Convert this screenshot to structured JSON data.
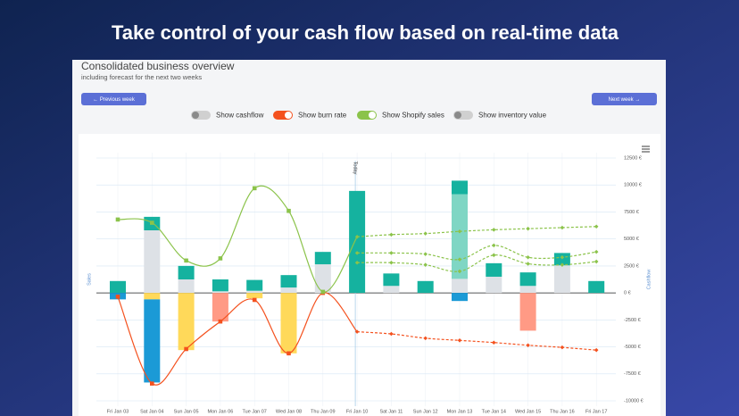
{
  "header": {
    "title": "Take control of your cash flow based on real-time data"
  },
  "panel": {
    "title": "Consolidated business overview",
    "subtitle": "including forecast for the next two weeks",
    "buttons": [
      "← Previous week",
      "Next week →"
    ],
    "toggles": [
      {
        "label": "Show cashflow",
        "on": false,
        "color": "#9e9e9e"
      },
      {
        "label": "Show burn rate",
        "on": true,
        "color": "#f4511e"
      },
      {
        "label": "Show Shopify sales",
        "on": true,
        "color": "#8bc34a"
      },
      {
        "label": "Show inventory value",
        "on": false,
        "color": "#9e9e9e"
      }
    ]
  },
  "chart_data": {
    "type": "combo",
    "y_label": "Sales",
    "y2_label": "Cashflow",
    "categories": [
      "Fri Jan 03",
      "Sat Jan 04",
      "Sun Jan 05",
      "Mon Jan 06",
      "Tue Jan 07",
      "Wed Jan 08",
      "Thu Jan 09",
      "Fri Jan 10",
      "Sat Jan 11",
      "Sun Jan 12",
      "Mon Jan 13",
      "Tue Jan 14",
      "Wed Jan 15",
      "Thu Jan 16",
      "Fri Jan 17"
    ],
    "annotations": [
      {
        "text": "Today",
        "x": "Fri Jan 10"
      }
    ],
    "ylim": [
      -10000,
      12500
    ],
    "yticks": [
      {
        "value": 12500,
        "label": "12500 €"
      },
      {
        "value": 10000,
        "label": "10000 €"
      },
      {
        "value": 7500,
        "label": "7500 €"
      },
      {
        "value": 5000,
        "label": "5000 €"
      },
      {
        "value": 2500,
        "label": "2500 €"
      },
      {
        "value": 0,
        "label": "0 €"
      },
      {
        "value": -2500,
        "label": "-2500 €"
      },
      {
        "value": -5000,
        "label": "-5000 €"
      },
      {
        "value": -7500,
        "label": "-7500 €"
      },
      {
        "value": -10000,
        "label": "-10000 €"
      }
    ],
    "grid": true,
    "series": [
      {
        "type": "bar",
        "color": "#dde1e6",
        "values": [
          0,
          5800,
          1250,
          150,
          200,
          500,
          2650,
          0,
          650,
          0,
          1300,
          1500,
          650,
          2550,
          0
        ]
      },
      {
        "type": "bar",
        "color": "#7fd6c4",
        "values": [
          0,
          0,
          0,
          0,
          0,
          0,
          0,
          0,
          0,
          0,
          7850,
          0,
          0,
          0,
          0
        ]
      },
      {
        "type": "bar",
        "color": "#15b29f",
        "values": [
          1100,
          1250,
          1250,
          1100,
          1000,
          1150,
          1150,
          9450,
          1150,
          1100,
          1250,
          1250,
          1250,
          1150,
          1100
        ]
      },
      {
        "type": "bar",
        "color": "#ffd95a",
        "values": [
          0,
          -600,
          -5300,
          0,
          -500,
          -5600,
          0,
          0,
          0,
          0,
          0,
          0,
          0,
          0,
          0
        ]
      },
      {
        "type": "bar",
        "color": "#1b9ad6",
        "values": [
          -600,
          -7700,
          0,
          0,
          0,
          0,
          0,
          0,
          0,
          0,
          -750,
          0,
          0,
          0,
          0
        ]
      },
      {
        "type": "bar",
        "color": "#ff9a85",
        "values": [
          0,
          0,
          0,
          -2650,
          0,
          0,
          0,
          0,
          0,
          0,
          0,
          0,
          -3500,
          0,
          0
        ]
      },
      {
        "type": "line",
        "color": "#f4511e",
        "values": [
          -350,
          -8400,
          -5200,
          -2650,
          -650,
          -5600,
          0,
          -3600,
          -3800,
          -4200,
          -4400,
          -4600,
          -4850,
          -5050,
          -5300
        ]
      },
      {
        "type": "line",
        "color": "#8bc34a",
        "values": [
          6800,
          6500,
          3000,
          3200,
          9700,
          7600,
          100,
          5200,
          5400,
          5500,
          5700,
          5850,
          5950,
          6050,
          6150
        ]
      },
      {
        "type": "line",
        "color": "#8bc34a",
        "values": [
          null,
          null,
          null,
          null,
          null,
          null,
          null,
          3700,
          3700,
          3600,
          3100,
          4400,
          3300,
          3300,
          3800
        ]
      },
      {
        "type": "line",
        "color": "#8bc34a",
        "values": [
          null,
          null,
          null,
          null,
          null,
          null,
          null,
          2800,
          2800,
          2600,
          2000,
          3500,
          2700,
          2600,
          2900
        ]
      }
    ]
  }
}
